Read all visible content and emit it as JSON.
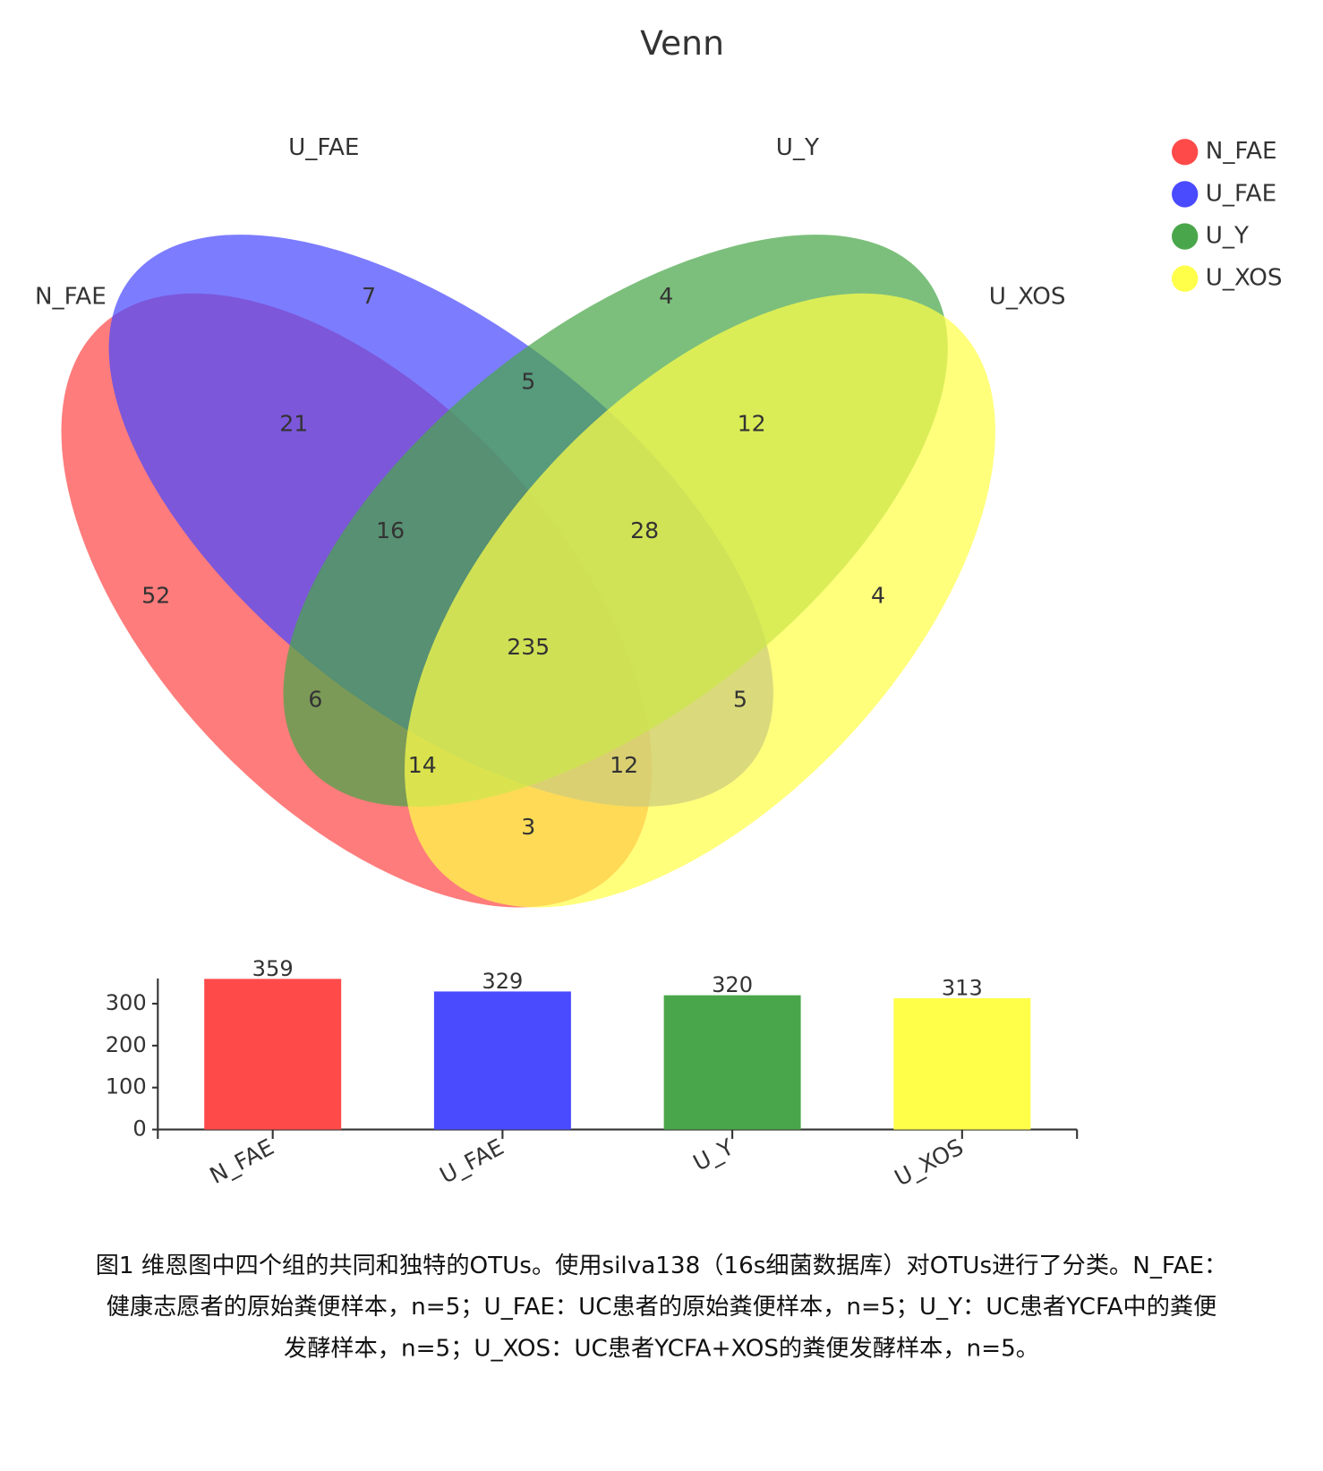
{
  "chart_data": [
    {
      "type": "venn",
      "title": "Venn",
      "sets": [
        {
          "name": "N_FAE",
          "color": "#ff4a4a"
        },
        {
          "name": "U_FAE",
          "color": "#4a4aff"
        },
        {
          "name": "U_Y",
          "color": "#4aa64a"
        },
        {
          "name": "U_XOS",
          "color": "#ffff4a"
        }
      ],
      "regions": [
        {
          "sets": [
            "N_FAE"
          ],
          "value": 52
        },
        {
          "sets": [
            "U_FAE"
          ],
          "value": 7
        },
        {
          "sets": [
            "U_Y"
          ],
          "value": 4
        },
        {
          "sets": [
            "U_XOS"
          ],
          "value": 4
        },
        {
          "sets": [
            "N_FAE",
            "U_FAE"
          ],
          "value": 21
        },
        {
          "sets": [
            "U_FAE",
            "U_Y"
          ],
          "value": 5
        },
        {
          "sets": [
            "U_Y",
            "U_XOS"
          ],
          "value": 12
        },
        {
          "sets": [
            "N_FAE",
            "U_XOS"
          ],
          "value": 3
        },
        {
          "sets": [
            "N_FAE",
            "U_Y"
          ],
          "value": 6
        },
        {
          "sets": [
            "U_FAE",
            "U_XOS"
          ],
          "value": 5
        },
        {
          "sets": [
            "N_FAE",
            "U_FAE",
            "U_Y"
          ],
          "value": 16
        },
        {
          "sets": [
            "U_FAE",
            "U_Y",
            "U_XOS"
          ],
          "value": 28
        },
        {
          "sets": [
            "N_FAE",
            "U_Y",
            "U_XOS"
          ],
          "value": 14
        },
        {
          "sets": [
            "N_FAE",
            "U_FAE",
            "U_XOS"
          ],
          "value": 12
        },
        {
          "sets": [
            "N_FAE",
            "U_FAE",
            "U_Y",
            "U_XOS"
          ],
          "value": 235
        }
      ]
    },
    {
      "type": "bar",
      "categories": [
        "N_FAE",
        "U_FAE",
        "U_Y",
        "U_XOS"
      ],
      "values": [
        359,
        329,
        320,
        313
      ],
      "colors": [
        "#ff4a4a",
        "#4a4aff",
        "#4aa64a",
        "#ffff4a"
      ],
      "ylim": [
        0,
        360
      ],
      "yticks": [
        0,
        100,
        200,
        300
      ]
    }
  ],
  "caption": [
    "图1 维恩图中四个组的共同和独特的OTUs。使用silva138（16s细菌数据库）对OTUs进行了分类。N_FAE：",
    "健康志愿者的原始粪便样本，n=5；U_FAE：UC患者的原始粪便样本，n=5；U_Y：UC患者YCFA中的粪便",
    "发酵样本，n=5；U_XOS：UC患者YCFA+XOS的粪便发酵样本，n=5。"
  ]
}
